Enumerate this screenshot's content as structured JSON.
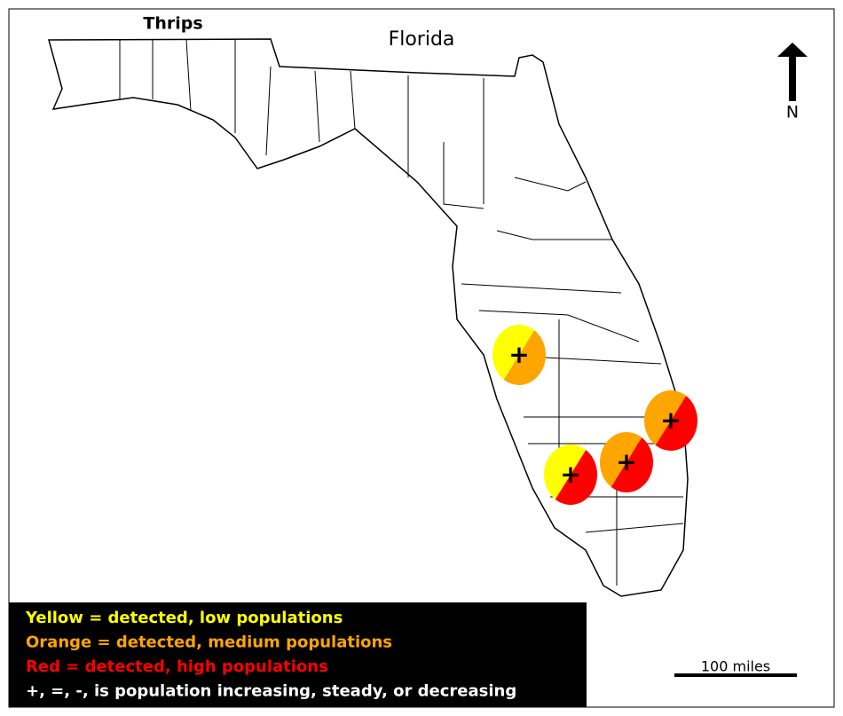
{
  "title": "Florida",
  "subtitle": "Thrips",
  "north": "N",
  "scale": "100 miles",
  "legend": [
    {
      "text": "Yellow = detected, low populations",
      "color": "#ffff00"
    },
    {
      "text": "Orange = detected, medium populations",
      "color": "#ffa500"
    },
    {
      "text": "Red = detected, high populations",
      "color": "#ff0000"
    },
    {
      "text": "+, =, -, is population increasing, steady, or decreasing",
      "color": "#ffffff"
    }
  ],
  "markers": [
    {
      "colors": [
        "#ffff00",
        "#ffa500"
      ],
      "trend": "+"
    },
    {
      "colors": [
        "#ffa500",
        "#ff0000"
      ],
      "trend": "+"
    },
    {
      "colors": [
        "#ffa500",
        "#ff0000"
      ],
      "trend": "+"
    },
    {
      "colors": [
        "#ffff00",
        "#ff0000"
      ],
      "trend": "+"
    }
  ]
}
